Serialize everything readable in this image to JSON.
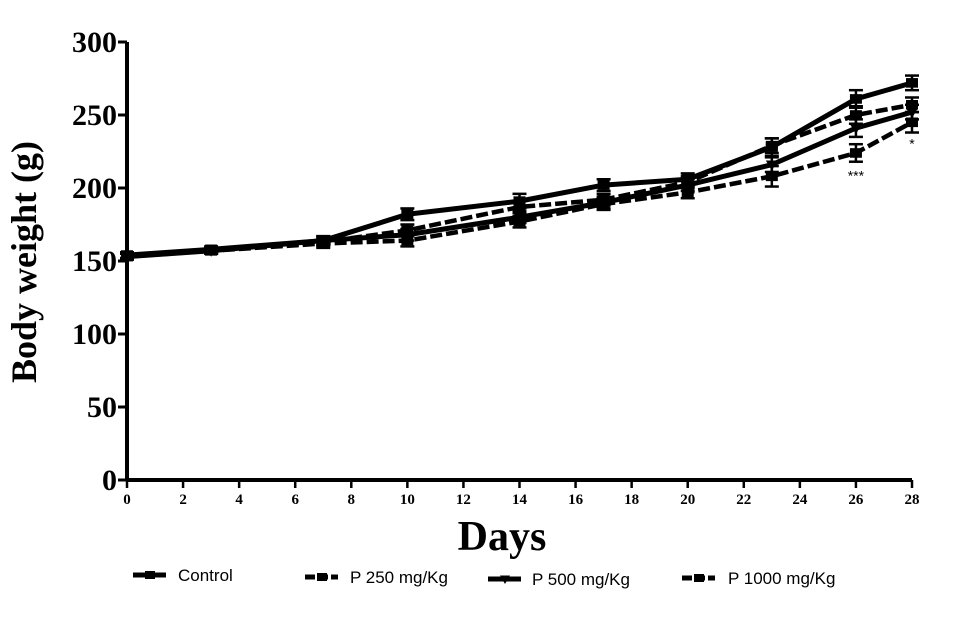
{
  "chart_data": {
    "type": "line",
    "title": "",
    "xlabel": "Days",
    "ylabel": "Body weight (g)",
    "xlim": [
      0,
      28
    ],
    "ylim": [
      0,
      300
    ],
    "xticks": [
      0,
      2,
      4,
      6,
      8,
      10,
      12,
      14,
      16,
      18,
      20,
      22,
      24,
      26,
      28
    ],
    "yticks": [
      0,
      50,
      100,
      150,
      200,
      250,
      300
    ],
    "grid": false,
    "legend_position": "bottom",
    "series": [
      {
        "name": "Control",
        "style": "solid",
        "marker": "square",
        "x": [
          0,
          3,
          7,
          10,
          14,
          17,
          20,
          23,
          26,
          28
        ],
        "y": [
          154,
          158,
          164,
          182,
          191,
          202,
          206,
          228,
          261,
          272
        ],
        "err": [
          2,
          2,
          3,
          4,
          5,
          4,
          4,
          6,
          6,
          5
        ]
      },
      {
        "name": "P 250 mg/Kg",
        "style": "dashed",
        "marker": "square",
        "x": [
          0,
          3,
          7,
          10,
          14,
          17,
          20,
          23,
          26,
          28
        ],
        "y": [
          153,
          157,
          163,
          171,
          187,
          192,
          204,
          229,
          250,
          257
        ],
        "err": [
          2,
          2,
          3,
          4,
          4,
          4,
          4,
          5,
          6,
          5
        ]
      },
      {
        "name": "P 500 mg/Kg",
        "style": "solid",
        "marker": "triangle-down",
        "x": [
          0,
          3,
          7,
          10,
          14,
          17,
          20,
          23,
          26,
          28
        ],
        "y": [
          153,
          157,
          164,
          168,
          180,
          190,
          202,
          216,
          241,
          252
        ],
        "err": [
          2,
          2,
          3,
          4,
          4,
          4,
          4,
          5,
          6,
          5
        ]
      },
      {
        "name": "P 1000 mg/Kg",
        "style": "dashed",
        "marker": "square",
        "x": [
          0,
          3,
          7,
          10,
          14,
          17,
          20,
          23,
          26,
          28
        ],
        "y": [
          154,
          157,
          162,
          164,
          177,
          189,
          197,
          208,
          224,
          245
        ],
        "err": [
          2,
          2,
          3,
          4,
          4,
          4,
          4,
          7,
          6,
          7
        ]
      }
    ],
    "annotations": [
      {
        "text": "***",
        "x": 26,
        "y": 212
      },
      {
        "text": "*",
        "x": 28,
        "y": 234
      }
    ]
  }
}
